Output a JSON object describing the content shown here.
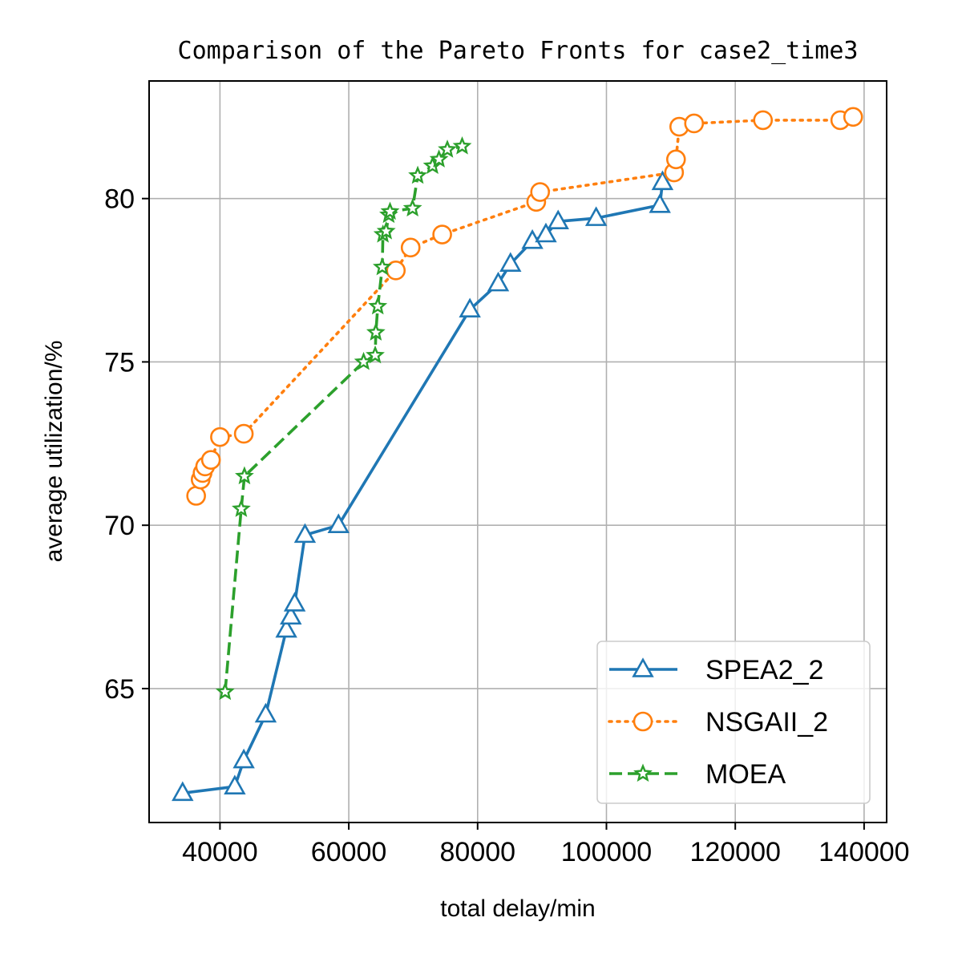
{
  "chart_data": {
    "type": "line",
    "title": "Comparison of the Pareto Fronts for case2_time3",
    "xlabel": "total delay/min",
    "ylabel": "average utilization/%",
    "xlim": [
      29000,
      143500
    ],
    "ylim": [
      60.9,
      83.6
    ],
    "xticks": [
      40000,
      60000,
      80000,
      100000,
      120000,
      140000
    ],
    "xtick_labels": [
      "40000",
      "60000",
      "80000",
      "100000",
      "120000",
      "140000"
    ],
    "yticks": [
      65,
      70,
      75,
      80
    ],
    "ytick_labels": [
      "65",
      "70",
      "75",
      "80"
    ],
    "grid": true,
    "legend_position": "lower-right",
    "series": [
      {
        "name": "SPEA2_2",
        "color": "#1f77b4",
        "line_style": "solid",
        "marker": "triangle-open",
        "x": [
          34200,
          42300,
          43700,
          47100,
          50300,
          51000,
          51600,
          53200,
          58400,
          78800,
          83200,
          85100,
          88500,
          90600,
          92500,
          98400,
          108300,
          108700
        ],
        "y": [
          61.8,
          62.0,
          62.8,
          64.2,
          66.8,
          67.2,
          67.6,
          69.7,
          70.0,
          76.6,
          77.4,
          78.0,
          78.7,
          78.9,
          79.3,
          79.4,
          79.8,
          80.5
        ]
      },
      {
        "name": "NSGAII_2",
        "color": "#ff7f0e",
        "line_style": "dotted",
        "marker": "circle-open",
        "x": [
          36300,
          37000,
          37300,
          37700,
          38600,
          40000,
          43700,
          67300,
          69600,
          74500,
          89100,
          89700,
          110500,
          110800,
          111300,
          113600,
          124300,
          136300,
          138300
        ],
        "y": [
          70.9,
          71.4,
          71.6,
          71.8,
          72.0,
          72.7,
          72.8,
          77.8,
          78.5,
          78.9,
          79.9,
          80.2,
          80.8,
          81.2,
          82.2,
          82.3,
          82.4,
          82.4,
          82.5
        ]
      },
      {
        "name": "MOEA",
        "color": "#2ca02c",
        "line_style": "dashed",
        "marker": "star-open",
        "x": [
          40800,
          43300,
          43800,
          62300,
          64100,
          64200,
          64500,
          65200,
          65300,
          65800,
          66200,
          66400,
          69900,
          70700,
          73000,
          74000,
          75300,
          77600
        ],
        "y": [
          64.9,
          70.5,
          71.5,
          75.0,
          75.2,
          75.9,
          76.7,
          77.9,
          78.9,
          79.0,
          79.5,
          79.6,
          79.7,
          80.7,
          81.0,
          81.2,
          81.5,
          81.6
        ]
      }
    ]
  }
}
